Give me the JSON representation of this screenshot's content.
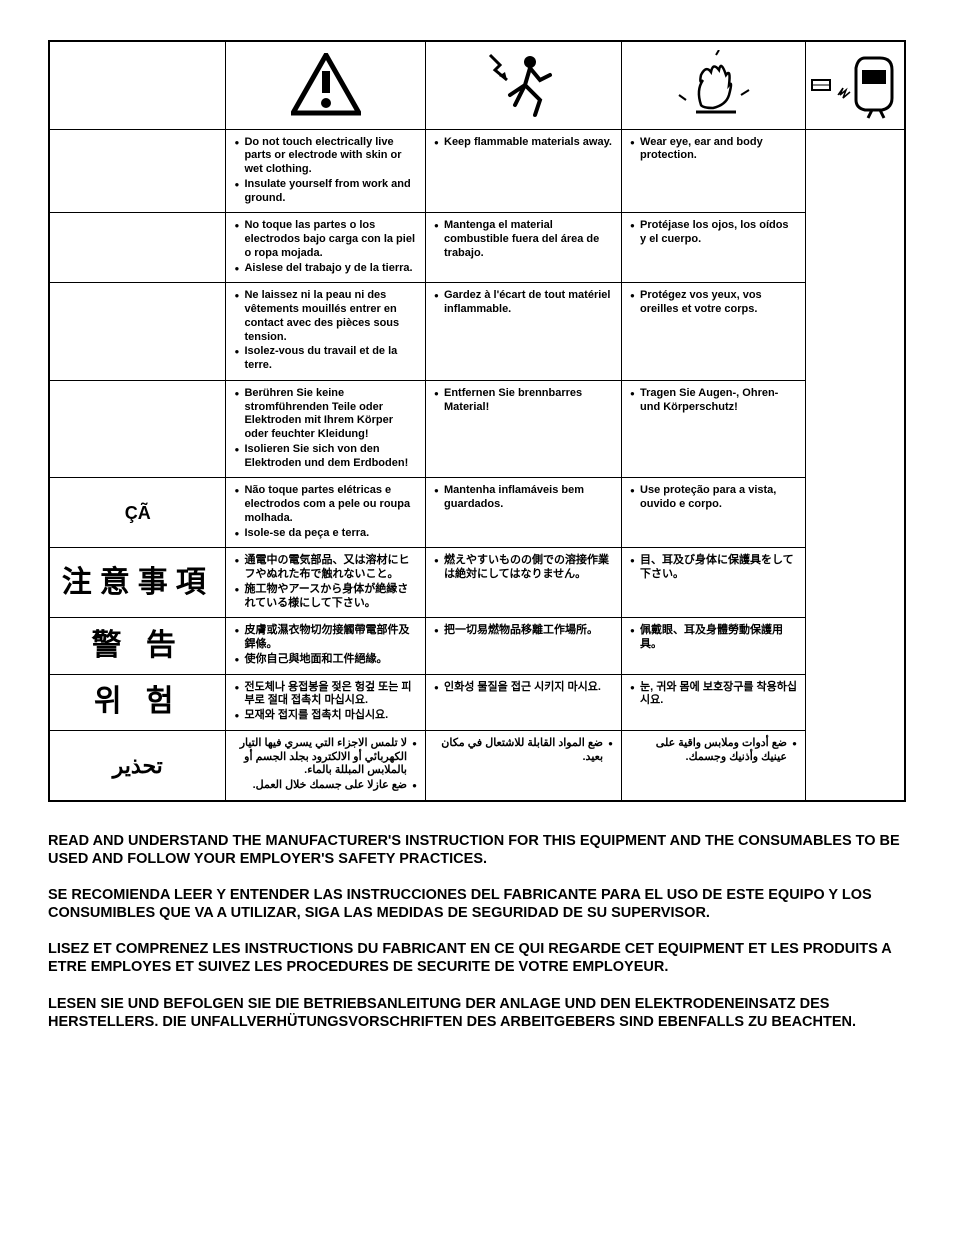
{
  "icons": {
    "warning": "warning-triangle",
    "shock": "electric-shock-person",
    "fire": "explosion-fire",
    "ppe": "welding-helmet-ppe"
  },
  "rows": [
    {
      "label": "",
      "labelClass": "",
      "c2": [
        "Do not touch electrically live parts or electrode with skin or wet clothing.",
        "Insulate yourself from work and ground."
      ],
      "c3": [
        "Keep flammable materials away."
      ],
      "c4": [
        "Wear eye, ear and body protection."
      ]
    },
    {
      "label": "",
      "labelClass": "",
      "c2": [
        "No toque las partes o los electrodos bajo carga con la piel o ropa mojada.",
        "Aislese del trabajo y de la tierra."
      ],
      "c3": [
        "Mantenga el material combustible fuera del área de trabajo."
      ],
      "c4": [
        "Protéjase los ojos, los oídos y el cuerpo."
      ]
    },
    {
      "label": "",
      "labelClass": "",
      "c2": [
        "Ne laissez ni la peau ni des vêtements mouillés entrer en contact avec des pièces sous tension.",
        "Isolez-vous du travail et de la terre."
      ],
      "c3": [
        "Gardez à l'écart de tout matériel inflammable."
      ],
      "c4": [
        "Protégez vos yeux, vos oreilles et votre corps."
      ]
    },
    {
      "label": "",
      "labelClass": "",
      "c2": [
        "Berühren Sie keine stromführenden Teile oder Elektroden mit Ihrem Körper oder feuchter Kleidung!",
        "Isolieren Sie sich von den Elektroden und dem Erdboden!"
      ],
      "c3": [
        "Entfernen Sie brennbarres Material!"
      ],
      "c4": [
        "Tragen Sie Augen-, Ohren- und Körperschutz!"
      ]
    },
    {
      "label": "ÇÃ",
      "labelClass": "label-med",
      "c2": [
        "Não toque partes elétricas e electrodos com a pele ou roupa molhada.",
        "Isole-se da peça e terra."
      ],
      "c3": [
        "Mantenha inflamáveis bem guardados."
      ],
      "c4": [
        "Use proteção para a vista, ouvido e corpo."
      ]
    },
    {
      "label": "注意事項",
      "labelClass": "label-cjk",
      "c2": [
        "通電中の電気部品、又は溶材にヒフやぬれた布で触れないこと。",
        "施工物やアースから身体が絶縁されている様にして下さい。"
      ],
      "c3": [
        "燃えやすいものの側での溶接作業は絶対にしてはなりません。"
      ],
      "c4": [
        "目、耳及び身体に保護具をして下さい。"
      ]
    },
    {
      "label": "警 告",
      "labelClass": "label-cjk",
      "c2": [
        "皮膚或濕衣物切勿接觸帶電部件及銲條。",
        "使你自己與地面和工件絕緣。"
      ],
      "c3": [
        "把一切易燃物品移離工作場所。"
      ],
      "c4": [
        "佩戴眼、耳及身體勞動保護用具。"
      ]
    },
    {
      "label": "위 험",
      "labelClass": "label-cjk",
      "c2": [
        "전도체나 용접봉을 젖은 헝겊 또는 피부로 절대 접촉치 마십시요.",
        "모재와 접지를 접촉치 마십시요."
      ],
      "c3": [
        "인화성 물질을 접근 시키지 마시요."
      ],
      "c4": [
        "눈, 귀와 몸에 보호장구를 착용하십시요."
      ]
    },
    {
      "label": "تحذير",
      "labelClass": "label-ar",
      "rtl": true,
      "c2": [
        "لا تلمس الاجزاء التي يسري فيها التيار الكهربائي أو الالكترود بجلد الجسم أو بالملابس المبللة بالماء.",
        "ضع عازلا على جسمك خلال العمل."
      ],
      "c3": [
        "ضع المواد القابلة للاشتعال في مكان بعيد."
      ],
      "c4": [
        "ضع أدوات وملابس واقية على عينيك وأذنيك وجسمك."
      ]
    }
  ],
  "footer": [
    "READ AND UNDERSTAND THE MANUFACTURER'S INSTRUCTION FOR THIS EQUIPMENT AND THE CONSUMABLES TO BE USED AND FOLLOW YOUR EMPLOYER'S SAFETY PRACTICES.",
    "SE RECOMIENDA LEER Y ENTENDER LAS INSTRUCCIONES DEL FABRICANTE PARA EL USO DE ESTE EQUIPO Y LOS CONSUMIBLES QUE VA A UTILIZAR, SIGA LAS MEDIDAS DE SEGURIDAD DE SU SUPERVISOR.",
    "LISEZ ET COMPRENEZ LES INSTRUCTIONS DU FABRICANT EN CE QUI REGARDE CET EQUIPMENT ET LES PRODUITS A ETRE EMPLOYES ET SUIVEZ LES PROCEDURES DE SECURITE DE VOTRE EMPLOYEUR.",
    "LESEN SIE UND BEFOLGEN SIE DIE BETRIEBSANLEITUNG DER ANLAGE UND DEN ELEKTRODENEINSATZ DES HERSTELLERS. DIE UNFALLVERHÜTUNGSVORSCHRIFTEN DES ARBEITGEBERS SIND EBENFALLS ZU BEACHTEN."
  ]
}
